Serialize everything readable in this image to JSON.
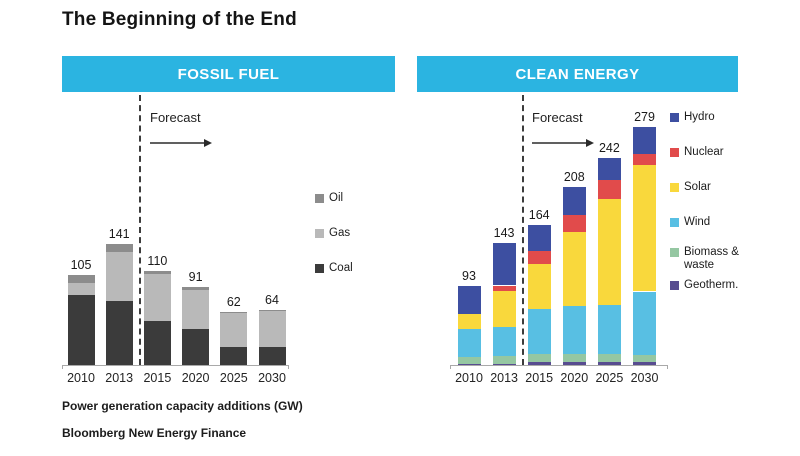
{
  "page": {
    "title": "The Beginning of the End",
    "footnote": "Power generation capacity additions (GW)",
    "source": "Bloomberg New Energy Finance"
  },
  "colors": {
    "header_bg": "#2BB4E1",
    "header_text": "#FFFFFF",
    "axis": "#A9A9A9",
    "forecast_line": "#3C3C3C",
    "text": "#1A1A1A"
  },
  "chart_data": [
    {
      "type": "bar",
      "stacked": true,
      "title": "FOSSIL FUEL",
      "annotation": "Forecast",
      "forecast_after_index": 1,
      "categories": [
        "2010",
        "2013",
        "2015",
        "2020",
        "2025",
        "2030"
      ],
      "series": [
        {
          "name": "Coal",
          "color": "#3B3B3B",
          "values": [
            82,
            75,
            52,
            42,
            21,
            21
          ]
        },
        {
          "name": "Gas",
          "color": "#B9B9B9",
          "values": [
            14,
            57,
            54,
            46,
            40,
            42
          ]
        },
        {
          "name": "Oil",
          "color": "#8C8C8C",
          "values": [
            9,
            9,
            4,
            3,
            1,
            1
          ]
        }
      ],
      "totals": [
        105,
        141,
        110,
        91,
        62,
        64
      ],
      "legend_order": [
        "Oil",
        "Gas",
        "Coal"
      ],
      "legend_position": "right",
      "ylim": [
        0,
        290
      ],
      "grid": false,
      "unit": "GW"
    },
    {
      "type": "bar",
      "stacked": true,
      "title": "CLEAN ENERGY",
      "annotation": "Forecast",
      "forecast_after_index": 1,
      "categories": [
        "2010",
        "2013",
        "2015",
        "2020",
        "2025",
        "2030"
      ],
      "series": [
        {
          "name": "Geotherm.",
          "color": "#584D90",
          "values": [
            1,
            1,
            3,
            3,
            3,
            3
          ]
        },
        {
          "name": "Biomass & waste",
          "color": "#95C7A2",
          "values": [
            8,
            10,
            10,
            10,
            10,
            9
          ]
        },
        {
          "name": "Wind",
          "color": "#58BFE3",
          "values": [
            33,
            33,
            52,
            56,
            57,
            74
          ]
        },
        {
          "name": "Solar",
          "color": "#F9D83C",
          "values": [
            18,
            43,
            53,
            87,
            124,
            148
          ]
        },
        {
          "name": "Nuclear",
          "color": "#E14B4B",
          "values": [
            0,
            6,
            15,
            19,
            22,
            13
          ]
        },
        {
          "name": "Hydro",
          "color": "#3D4FA1",
          "values": [
            33,
            50,
            31,
            33,
            26,
            32
          ]
        }
      ],
      "totals": [
        93,
        143,
        164,
        208,
        242,
        279
      ],
      "legend_order": [
        "Hydro",
        "Nuclear",
        "Solar",
        "Wind",
        "Biomass & waste",
        "Geotherm."
      ],
      "legend_position": "right",
      "ylim": [
        0,
        290
      ],
      "grid": false,
      "unit": "GW"
    }
  ]
}
